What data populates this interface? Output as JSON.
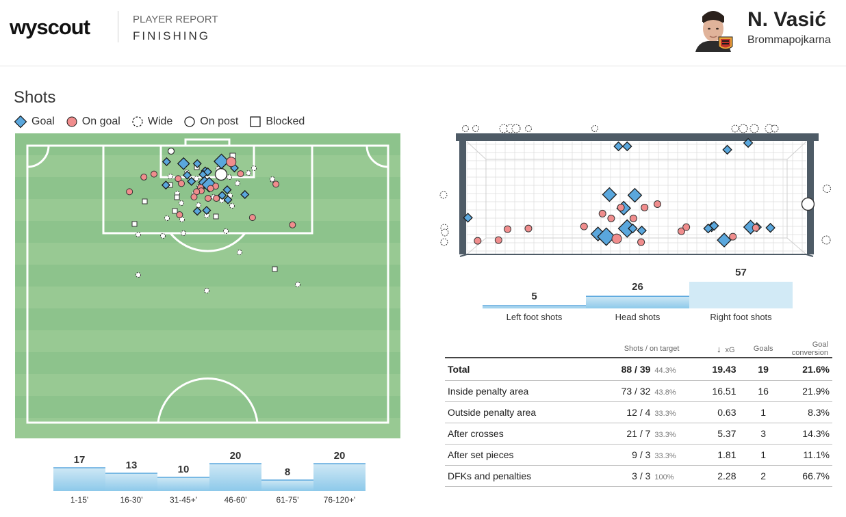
{
  "header": {
    "logo": "wyscout",
    "report_type": "PLAYER REPORT",
    "report_name": "FINISHING",
    "player_name": "N. Vasić",
    "club": "Brommapojkarna"
  },
  "shots_section": {
    "title": "Shots",
    "legend": [
      "Goal",
      "On goal",
      "Wide",
      "On post",
      "Blocked"
    ]
  },
  "colors": {
    "goal": "#5aa7dd",
    "on_goal": "#f08d8d",
    "pitch_dark": "#8dc38c",
    "pitch_light": "#98c993",
    "bar": "#a9d7f0",
    "bar_light": "#cfe8f5",
    "goal_frame": "#4e5b66"
  },
  "chart_data": [
    {
      "type": "scatter",
      "name": "shot-map",
      "coordinate_system": "pitch half, x 0-100 across width (left to right), y 0-100 from goal line",
      "points": [
        {
          "x": 38.6,
          "y": 9.2,
          "r": 1,
          "type": "goal"
        },
        {
          "x": 43.3,
          "y": 10.3,
          "r": 2,
          "type": "goal"
        },
        {
          "x": 47.1,
          "y": 10.3,
          "r": 1,
          "type": "goal"
        },
        {
          "x": 53.8,
          "y": 9.0,
          "r": 3,
          "type": "goal"
        },
        {
          "x": 57.4,
          "y": 12.8,
          "r": 1,
          "type": "goal"
        },
        {
          "x": 49.3,
          "y": 14.5,
          "r": 1,
          "type": "goal"
        },
        {
          "x": 44.3,
          "y": 16.9,
          "r": 1,
          "type": "goal"
        },
        {
          "x": 48.7,
          "y": 16.5,
          "r": 1,
          "type": "goal"
        },
        {
          "x": 50.0,
          "y": 15.0,
          "r": 1,
          "type": "goal"
        },
        {
          "x": 45.5,
          "y": 20.5,
          "r": 1,
          "type": "goal"
        },
        {
          "x": 38.4,
          "y": 22.6,
          "r": 1,
          "type": "goal"
        },
        {
          "x": 49.1,
          "y": 21.1,
          "r": 2,
          "type": "goal"
        },
        {
          "x": 50.4,
          "y": 22.4,
          "r": 3,
          "type": "goal"
        },
        {
          "x": 55.4,
          "y": 25.3,
          "r": 1,
          "type": "goal"
        },
        {
          "x": 60.3,
          "y": 28.0,
          "r": 1,
          "type": "goal"
        },
        {
          "x": 54.0,
          "y": 28.5,
          "r": 1,
          "type": "goal"
        },
        {
          "x": 55.6,
          "y": 31.0,
          "r": 1,
          "type": "goal"
        },
        {
          "x": 47.1,
          "y": 37.6,
          "r": 1,
          "type": "goal"
        },
        {
          "x": 49.7,
          "y": 37.1,
          "r": 1,
          "type": "goal"
        },
        {
          "x": 56.5,
          "y": 9.3,
          "r": 2,
          "type": "on_goal"
        },
        {
          "x": 59.1,
          "y": 16.1,
          "r": 1,
          "type": "on_goal"
        },
        {
          "x": 32.3,
          "y": 18.0,
          "r": 1,
          "type": "on_goal"
        },
        {
          "x": 35.1,
          "y": 16.3,
          "r": 1,
          "type": "on_goal"
        },
        {
          "x": 41.8,
          "y": 18.9,
          "r": 1,
          "type": "on_goal"
        },
        {
          "x": 42.7,
          "y": 21.7,
          "r": 1,
          "type": "on_goal"
        },
        {
          "x": 52.2,
          "y": 23.2,
          "r": 1,
          "type": "on_goal"
        },
        {
          "x": 48.0,
          "y": 24.0,
          "r": 1,
          "type": "on_goal"
        },
        {
          "x": 50.8,
          "y": 24.5,
          "r": 1,
          "type": "on_goal"
        },
        {
          "x": 48.2,
          "y": 25.9,
          "r": 1,
          "type": "on_goal"
        },
        {
          "x": 46.9,
          "y": 26.4,
          "r": 1,
          "type": "on_goal"
        },
        {
          "x": 46.2,
          "y": 29.4,
          "r": 1,
          "type": "on_goal"
        },
        {
          "x": 50.1,
          "y": 30.2,
          "r": 1,
          "type": "on_goal"
        },
        {
          "x": 52.4,
          "y": 30.2,
          "r": 1,
          "type": "on_goal"
        },
        {
          "x": 28.3,
          "y": 26.4,
          "r": 1,
          "type": "on_goal"
        },
        {
          "x": 68.9,
          "y": 22.1,
          "r": 1,
          "type": "on_goal"
        },
        {
          "x": 42.2,
          "y": 39.6,
          "r": 1,
          "type": "on_goal"
        },
        {
          "x": 62.4,
          "y": 41.2,
          "r": 1,
          "type": "on_goal"
        },
        {
          "x": 73.5,
          "y": 45.4,
          "r": 1,
          "type": "on_goal"
        }
      ]
    },
    {
      "type": "scatter",
      "name": "goal-mouth-map",
      "coordinate_system": "goal face, x 0-100 post to post, y 0-100 from ground to crossbar",
      "points": [
        {
          "x": 1.5,
          "y": 32.3,
          "r": 1,
          "type": "goal"
        },
        {
          "x": 38.9,
          "y": 18.0,
          "r": 2,
          "type": "goal"
        },
        {
          "x": 41.3,
          "y": 15.6,
          "r": 3,
          "type": "goal"
        },
        {
          "x": 47.3,
          "y": 22.8,
          "r": 3,
          "type": "goal"
        },
        {
          "x": 48.9,
          "y": 22.8,
          "r": 1,
          "type": "goal"
        },
        {
          "x": 51.5,
          "y": 21.0,
          "r": 1,
          "type": "goal"
        },
        {
          "x": 46.3,
          "y": 40.7,
          "r": 2,
          "type": "goal"
        },
        {
          "x": 49.5,
          "y": 52.1,
          "r": 2,
          "type": "goal"
        },
        {
          "x": 42.2,
          "y": 52.7,
          "r": 2,
          "type": "goal"
        },
        {
          "x": 44.8,
          "y": 95.2,
          "r": 1,
          "type": "goal"
        },
        {
          "x": 47.3,
          "y": 95.2,
          "r": 1,
          "type": "goal"
        },
        {
          "x": 71.6,
          "y": 24.0,
          "r": 1,
          "type": "goal"
        },
        {
          "x": 72.3,
          "y": 25.2,
          "r": 1,
          "type": "goal"
        },
        {
          "x": 70.6,
          "y": 22.8,
          "r": 1,
          "type": "goal"
        },
        {
          "x": 75.2,
          "y": 12.6,
          "r": 2,
          "type": "goal"
        },
        {
          "x": 82.8,
          "y": 24.0,
          "r": 2,
          "type": "goal"
        },
        {
          "x": 84.6,
          "y": 24.0,
          "r": 1,
          "type": "goal"
        },
        {
          "x": 88.5,
          "y": 23.4,
          "r": 1,
          "type": "goal"
        },
        {
          "x": 76.1,
          "y": 92.2,
          "r": 1,
          "type": "goal"
        },
        {
          "x": 82.1,
          "y": 98.2,
          "r": 1,
          "type": "goal"
        },
        {
          "x": 44.3,
          "y": 13.8,
          "r": 2,
          "type": "on_goal"
        },
        {
          "x": 51.3,
          "y": 10.8,
          "r": 1,
          "type": "on_goal"
        },
        {
          "x": 4.3,
          "y": 12.0,
          "r": 1,
          "type": "on_goal"
        },
        {
          "x": 10.3,
          "y": 12.6,
          "r": 1,
          "type": "on_goal"
        },
        {
          "x": 12.9,
          "y": 22.2,
          "r": 1,
          "type": "on_goal"
        },
        {
          "x": 18.9,
          "y": 22.8,
          "r": 1,
          "type": "on_goal"
        },
        {
          "x": 34.9,
          "y": 24.6,
          "r": 1,
          "type": "on_goal"
        },
        {
          "x": 42.7,
          "y": 31.7,
          "r": 1,
          "type": "on_goal"
        },
        {
          "x": 49.1,
          "y": 31.7,
          "r": 1,
          "type": "on_goal"
        },
        {
          "x": 45.5,
          "y": 41.3,
          "r": 1,
          "type": "on_goal"
        },
        {
          "x": 52.3,
          "y": 41.3,
          "r": 1,
          "type": "on_goal"
        },
        {
          "x": 56.0,
          "y": 44.3,
          "r": 1,
          "type": "on_goal"
        },
        {
          "x": 62.9,
          "y": 20.4,
          "r": 1,
          "type": "on_goal"
        },
        {
          "x": 64.3,
          "y": 24.0,
          "r": 1,
          "type": "on_goal"
        },
        {
          "x": 77.7,
          "y": 15.6,
          "r": 1,
          "type": "on_goal"
        },
        {
          "x": 84.3,
          "y": 23.4,
          "r": 1,
          "type": "on_goal"
        },
        {
          "x": 40.2,
          "y": 35.9,
          "r": 1,
          "type": "on_goal"
        },
        {
          "x": 99.3,
          "y": 44.3,
          "r": 2,
          "type": "on_post"
        }
      ]
    },
    {
      "type": "bar",
      "name": "shots-by-minute",
      "categories": [
        "1-15'",
        "16-30'",
        "31-45+'",
        "46-60'",
        "61-75'",
        "76-120+'"
      ],
      "values": [
        17,
        13,
        10,
        20,
        8,
        20
      ]
    },
    {
      "type": "bar",
      "name": "shots-by-body-part",
      "categories": [
        "Left foot shots",
        "Head shots",
        "Right foot shots"
      ],
      "values": [
        5,
        26,
        57
      ]
    },
    {
      "type": "table",
      "name": "finishing-stats",
      "columns": [
        "",
        "Shots / on target",
        "xG",
        "Goals",
        "Goal conversion"
      ],
      "rows": [
        {
          "label": "Total",
          "shots": "88 / 39",
          "pct": "44.3%",
          "xg": "19.43",
          "goals": "19",
          "conv": "21.6%"
        },
        {
          "label": "Inside penalty area",
          "shots": "73 / 32",
          "pct": "43.8%",
          "xg": "16.51",
          "goals": "16",
          "conv": "21.9%"
        },
        {
          "label": "Outside penalty area",
          "shots": "12 / 4",
          "pct": "33.3%",
          "xg": "0.63",
          "goals": "1",
          "conv": "8.3%"
        },
        {
          "label": "After crosses",
          "shots": "21 / 7",
          "pct": "33.3%",
          "xg": "5.37",
          "goals": "3",
          "conv": "14.3%"
        },
        {
          "label": "After set pieces",
          "shots": "9 / 3",
          "pct": "33.3%",
          "xg": "1.81",
          "goals": "1",
          "conv": "11.1%"
        },
        {
          "label": "DFKs and penalties",
          "shots": "3 / 3",
          "pct": "100%",
          "xg": "2.28",
          "goals": "2",
          "conv": "66.7%"
        }
      ]
    }
  ]
}
